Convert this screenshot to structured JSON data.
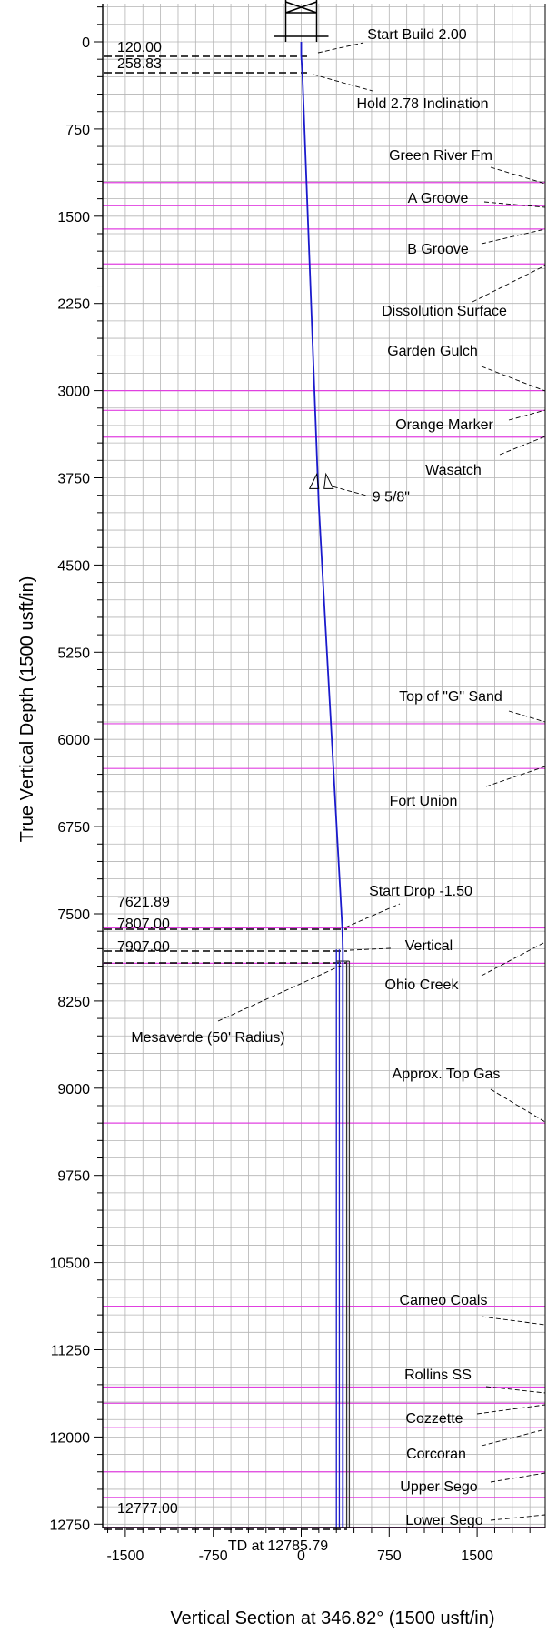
{
  "chart_data": {
    "type": "line",
    "xlabel": "Vertical Section at 346.82° (1500 usft/in)",
    "ylabel": "True Vertical Depth (1500 usft/in)",
    "xlim": [
      -1700,
      2130
    ],
    "ylim": [
      12990,
      -300
    ],
    "y_inverted": true,
    "grid": true,
    "x_ticks": [
      -1500,
      -750,
      0,
      750,
      1500
    ],
    "y_ticks": [
      0,
      750,
      1500,
      2250,
      3000,
      3750,
      4500,
      5250,
      6000,
      6750,
      7500,
      8250,
      9000,
      9750,
      10500,
      11250,
      12000,
      12750
    ],
    "wellbore_path": {
      "x": [
        0,
        0,
        9,
        150,
        350,
        355,
        355
      ],
      "y": [
        0,
        120,
        258.83,
        4000,
        7621.89,
        7807,
        12785.79
      ]
    },
    "casing_strings": [
      {
        "x_left": 300,
        "x_right": 325,
        "y_top": 7807,
        "y_bottom": 12785.79
      },
      {
        "x_left": 388,
        "x_right": 410,
        "y_top": 7907,
        "y_bottom": 12785.79
      }
    ],
    "casing_shoe": {
      "label": "9 5/8\"",
      "x": 180,
      "y": 3780
    },
    "formation_tops": [
      {
        "label": "Green River Fm",
        "tvd": 1210,
        "arrow": true
      },
      {
        "label": "A Groove",
        "tvd": 1410,
        "arrow": true
      },
      {
        "label": "",
        "tvd": 1610,
        "arrow": false
      },
      {
        "label": "B Groove",
        "tvd": 1910,
        "arrow": true
      },
      {
        "label": "Dissolution Surface",
        "tvd": 1910,
        "arrow": false
      },
      {
        "label": "Garden Gulch",
        "tvd": 3000,
        "arrow": true
      },
      {
        "label": "",
        "tvd": 3170,
        "arrow": false
      },
      {
        "label": "Orange Marker",
        "tvd": 3170,
        "arrow": true
      },
      {
        "label": "Wasatch",
        "tvd": 3400,
        "arrow": true
      },
      {
        "label": "Top of \"G\" Sand",
        "tvd": 5865,
        "arrow": true
      },
      {
        "label": "Fort Union",
        "tvd": 6250,
        "arrow": true
      },
      {
        "label": "",
        "tvd": 7621.89,
        "arrow": false
      },
      {
        "label": "Ohio Creek",
        "tvd": 7925,
        "arrow": true
      },
      {
        "label": "Approx. Top Gas",
        "tvd": 9300,
        "arrow": true
      },
      {
        "label": "Cameo Coals",
        "tvd": 10875,
        "arrow": true
      },
      {
        "label": "Rollins SS",
        "tvd": 11570,
        "arrow": true
      },
      {
        "label": "Cozzette",
        "tvd": 11710,
        "arrow": true
      },
      {
        "label": "Corcoran",
        "tvd": 11920,
        "arrow": true
      },
      {
        "label": "Upper Sego",
        "tvd": 12300,
        "arrow": true
      },
      {
        "label": "Lower Sego",
        "tvd": 12520,
        "arrow": true
      },
      {
        "label": "",
        "tvd": 12777,
        "arrow": false
      }
    ],
    "plan_annotations": [
      {
        "label": "Start Build 2.00",
        "tvd": 120,
        "value_label": "120.00"
      },
      {
        "label": "Hold 2.78 Inclination",
        "tvd": 258.83,
        "value_label": "258.83"
      },
      {
        "label": "Start Drop -1.50",
        "tvd": 7621.89,
        "value_label": "7621.89"
      },
      {
        "label": "Vertical",
        "tvd": 7807,
        "value_label": "7807.00"
      },
      {
        "label": "Mesaverde (50' Radius)",
        "tvd": 7907,
        "value_label": "7907.00"
      },
      {
        "label": "TD at 12785.79",
        "tvd": 12777,
        "value_label": "12777.00"
      }
    ],
    "colors": {
      "well_path": "#1a1acc",
      "formation": "#e040e0",
      "grid": "#b4b4b4",
      "axes": "#000000",
      "dashes": "#000000"
    }
  }
}
